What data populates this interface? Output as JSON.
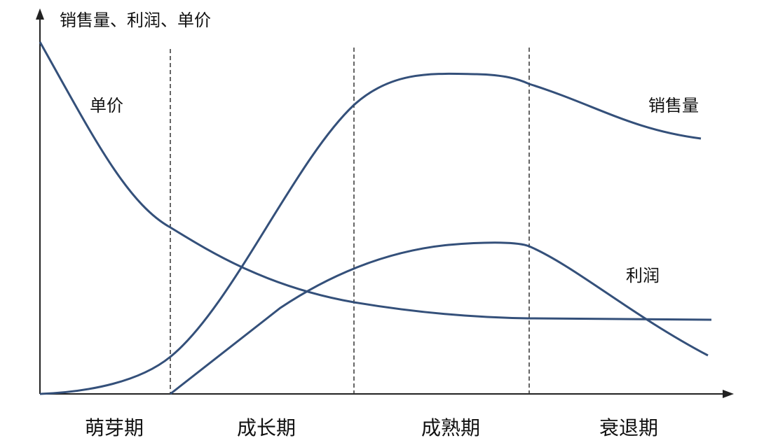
{
  "axis_label": "销售量、利润、单价",
  "curve_labels": {
    "price": "单价",
    "sales": "销售量",
    "profit": "利润"
  },
  "phases": [
    "萌芽期",
    "成长期",
    "成熟期",
    "衰退期"
  ]
}
